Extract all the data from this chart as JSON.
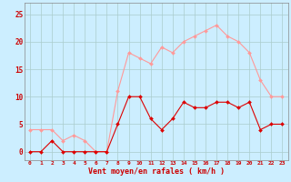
{
  "x": [
    0,
    1,
    2,
    3,
    4,
    5,
    6,
    7,
    8,
    9,
    10,
    11,
    12,
    13,
    14,
    15,
    16,
    17,
    18,
    19,
    20,
    21,
    22,
    23
  ],
  "y_mean": [
    0,
    0,
    2,
    0,
    0,
    0,
    0,
    0,
    5,
    10,
    10,
    6,
    4,
    6,
    9,
    8,
    8,
    9,
    9,
    8,
    9,
    4,
    5,
    5
  ],
  "y_gust": [
    4,
    4,
    4,
    2,
    3,
    2,
    0,
    0,
    11,
    18,
    17,
    16,
    19,
    18,
    20,
    21,
    22,
    23,
    21,
    20,
    18,
    13,
    10,
    10
  ],
  "line_color_mean": "#dd0000",
  "line_color_gust": "#ff9999",
  "bg_color": "#cceeff",
  "grid_color": "#aacccc",
  "xlabel": "Vent moyen/en rafales ( km/h )",
  "ylabel_ticks": [
    0,
    5,
    10,
    15,
    20,
    25
  ],
  "ylim": [
    -1.5,
    27
  ],
  "xlim": [
    -0.5,
    23.5
  ],
  "xlabel_color": "#cc0000",
  "tick_color": "#cc0000",
  "spine_color": "#888888"
}
